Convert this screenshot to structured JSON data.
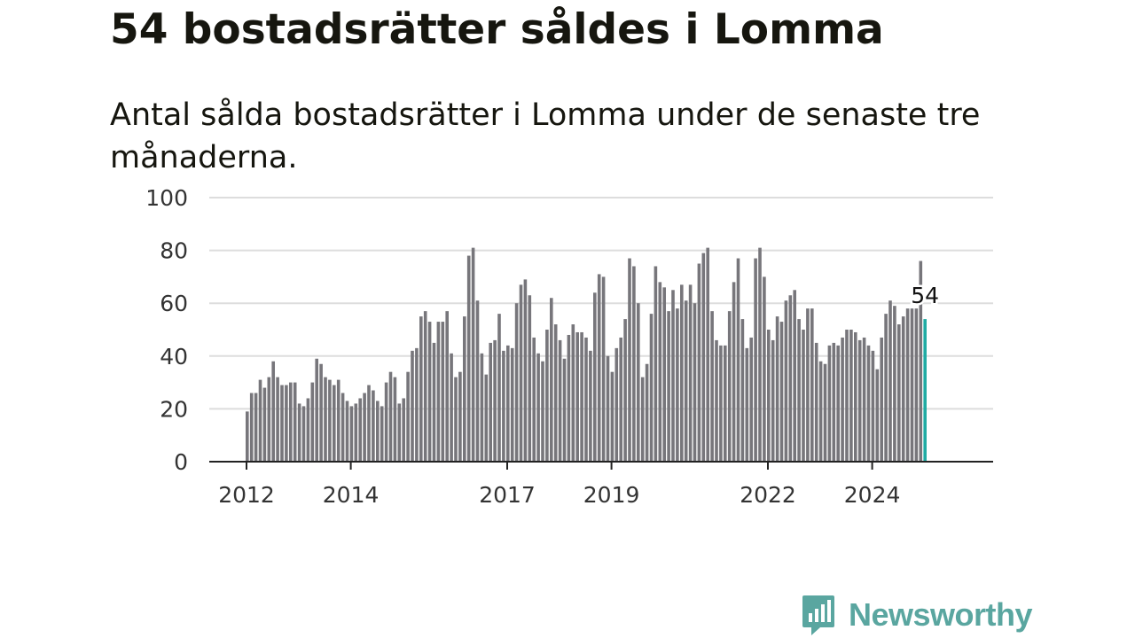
{
  "title": "54 bostadsrätter såldes i Lomma",
  "subtitle": "Antal sålda bostadsrätter i Lomma under de senaste tre månaderna.",
  "brand": {
    "name": "Newsworthy",
    "icon": "newsworthy-logo-icon",
    "color": "#5aa6a0"
  },
  "chart_data": {
    "type": "bar",
    "ylim": [
      0,
      100
    ],
    "y_ticks": [
      0,
      20,
      40,
      60,
      80,
      100
    ],
    "x_ticks": [
      "2012",
      "2014",
      "2017",
      "2019",
      "2022",
      "2024"
    ],
    "grid": true,
    "bar_color": "#77767b",
    "highlight_color": "#20aba3",
    "highlight_label": "54",
    "values": [
      19,
      26,
      26,
      31,
      28,
      32,
      38,
      32,
      29,
      29,
      30,
      30,
      22,
      21,
      24,
      30,
      39,
      37,
      32,
      31,
      29,
      31,
      26,
      23,
      21,
      22,
      24,
      26,
      29,
      27,
      23,
      21,
      30,
      34,
      32,
      22,
      24,
      34,
      42,
      43,
      55,
      57,
      53,
      45,
      53,
      53,
      57,
      41,
      32,
      34,
      55,
      78,
      81,
      61,
      41,
      33,
      45,
      46,
      56,
      42,
      44,
      43,
      60,
      67,
      69,
      63,
      47,
      41,
      38,
      50,
      62,
      52,
      46,
      39,
      48,
      52,
      49,
      49,
      47,
      42,
      64,
      71,
      70,
      40,
      34,
      43,
      47,
      54,
      77,
      74,
      60,
      32,
      37,
      56,
      74,
      68,
      66,
      57,
      65,
      58,
      67,
      61,
      67,
      60,
      75,
      79,
      81,
      57,
      46,
      44,
      44,
      57,
      68,
      77,
      54,
      43,
      47,
      77,
      81,
      70,
      50,
      46,
      55,
      53,
      61,
      63,
      65,
      54,
      50,
      58,
      58,
      45,
      38,
      37,
      44,
      45,
      44,
      47,
      50,
      50,
      49,
      46,
      47,
      44,
      42,
      35,
      47,
      56,
      61,
      59,
      52,
      55,
      58,
      58,
      58,
      76,
      54
    ]
  }
}
